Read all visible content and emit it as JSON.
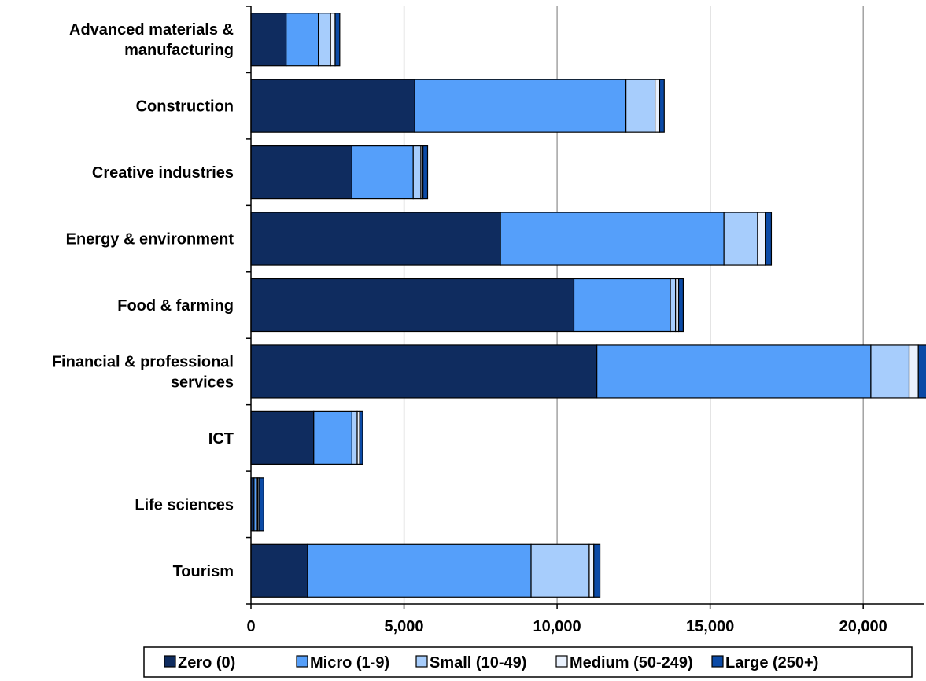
{
  "chart_data": {
    "type": "bar",
    "orientation": "horizontal",
    "stacked": true,
    "title": "",
    "xlabel": "",
    "ylabel": "",
    "xlim": [
      0,
      22000
    ],
    "x_ticks": [
      0,
      5000,
      10000,
      15000,
      20000
    ],
    "x_tick_labels": [
      "0",
      "5,000",
      "10,000",
      "15,000",
      "20,000"
    ],
    "grid": "vertical",
    "legend_position": "bottom",
    "categories": [
      [
        "Advanced materials &",
        "manufacturing"
      ],
      [
        "Construction"
      ],
      [
        "Creative industries"
      ],
      [
        "Energy & environment"
      ],
      [
        "Food & farming"
      ],
      [
        "Financial & professional",
        "services"
      ],
      [
        "ICT"
      ],
      [
        "Life sciences"
      ],
      [
        "Tourism"
      ]
    ],
    "series": [
      {
        "name": "Zero (0)",
        "color": "#0f2c5f",
        "values": [
          1150,
          5350,
          3300,
          8150,
          10550,
          11300,
          2050,
          100,
          1850
        ]
      },
      {
        "name": "Micro (1-9)",
        "color": "#559ffa",
        "values": [
          1050,
          6900,
          2000,
          7300,
          3150,
          8950,
          1250,
          80,
          7300
        ]
      },
      {
        "name": "Small (10-49)",
        "color": "#a7cdfc",
        "values": [
          400,
          950,
          250,
          1100,
          170,
          1250,
          170,
          40,
          1900
        ]
      },
      {
        "name": "Medium (50-249)",
        "color": "#e9f1fd",
        "values": [
          150,
          150,
          70,
          250,
          100,
          300,
          80,
          40,
          150
        ]
      },
      {
        "name": "Large (250+)",
        "color": "#0b4aa6",
        "values": [
          150,
          150,
          150,
          200,
          150,
          350,
          100,
          160,
          200
        ]
      }
    ]
  }
}
